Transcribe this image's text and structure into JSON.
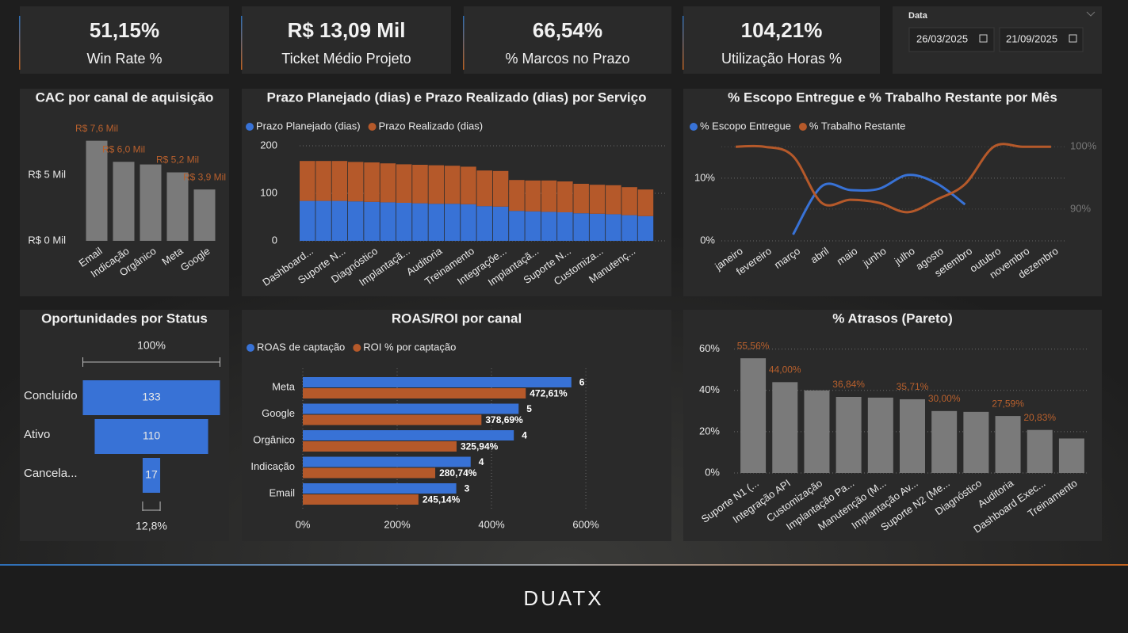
{
  "kpis": [
    {
      "value": "51,15%",
      "label": "Win Rate %"
    },
    {
      "value": "R$ 13,09 Mil",
      "label": "Ticket Médio Projeto"
    },
    {
      "value": "66,54%",
      "label": "% Marcos no Prazo"
    },
    {
      "value": "104,21%",
      "label": "Utilização Horas %"
    }
  ],
  "date_filter": {
    "label": "Data",
    "start": "26/03/2025",
    "end": "21/09/2025"
  },
  "chart_data": [
    {
      "type": "bar",
      "title": "CAC por canal de aquisição",
      "categories": [
        "Email",
        "Indicação",
        "Orgânico",
        "Meta",
        "Google"
      ],
      "values": [
        7.6,
        6.0,
        5.8,
        5.2,
        3.9
      ],
      "value_labels": [
        "R$ 7,6 Mil",
        "R$ 6,0 Mil",
        null,
        "R$ 5,2 Mil",
        "R$ 3,9 Mil"
      ],
      "color": "#7a7a7a",
      "label_color": "#b8602d",
      "ylim": [
        0,
        8
      ],
      "yticks": [
        {
          "value": 0,
          "label": "R$ 0 Mil"
        },
        {
          "value": 5,
          "label": "R$ 5 Mil"
        }
      ],
      "grid": false
    },
    {
      "type": "stacked_bar",
      "title": "Prazo Planejado (dias) e Prazo Realizado (dias) por Serviço",
      "categories": [
        "Dashboard...",
        null,
        "Suporte N...",
        null,
        "Diagnóstico",
        null,
        "Implantaçã...",
        null,
        "Auditoria",
        null,
        "Treinamento",
        null,
        "Integraçõe...",
        null,
        "Implantaçã...",
        null,
        "Suporte N...",
        null,
        "Customiza...",
        null,
        "Manutenç...",
        null
      ],
      "series": [
        {
          "name": "Prazo Planejado (dias)",
          "color": "#3872d6",
          "values": [
            84,
            84,
            84,
            83,
            82,
            81,
            80,
            79,
            78,
            78,
            77,
            73,
            72,
            63,
            62,
            61,
            60,
            58,
            57,
            56,
            54,
            52
          ]
        },
        {
          "name": "Prazo Realizado (dias)",
          "color": "#b5592a",
          "values": [
            84,
            84,
            84,
            83,
            83,
            82,
            81,
            81,
            81,
            80,
            79,
            75,
            75,
            65,
            65,
            66,
            65,
            62,
            61,
            61,
            59,
            56
          ]
        }
      ],
      "ylim": [
        0,
        210
      ],
      "yticks": [
        0,
        100,
        200
      ],
      "grid": true,
      "legend": "top-left"
    },
    {
      "type": "line",
      "title": "% Escopo Entregue e % Trabalho Restante por Mês",
      "categories": [
        "janeiro",
        "fevereiro",
        "março",
        "abril",
        "maio",
        "junho",
        "julho",
        "agosto",
        "setembro",
        "outubro",
        "novembro",
        "dezembro"
      ],
      "series": [
        {
          "name": "% Escopo Entregue",
          "color": "#3872d6",
          "values": [
            null,
            null,
            1.0,
            8.7,
            8.1,
            8.3,
            10.5,
            9.2,
            5.8,
            null,
            null,
            null
          ]
        },
        {
          "name": "% Trabalho Restante",
          "color": "#b5592a",
          "axis": "y2",
          "values": [
            100,
            100,
            98.5,
            91,
            91.5,
            91,
            89.5,
            91.5,
            94,
            100,
            100,
            100
          ]
        }
      ],
      "ylim": [
        0,
        16.3
      ],
      "yticks": [
        {
          "value": 0,
          "label": "0%"
        },
        {
          "value": 10,
          "label": "10%"
        }
      ],
      "y2lim": [
        84.9,
        101.3
      ],
      "y2ticks": [
        {
          "value": 90,
          "label": "90%"
        },
        {
          "value": 100,
          "label": "100%"
        }
      ],
      "grid": true,
      "legend": "top-left"
    },
    {
      "type": "funnel",
      "title": "Oportunidades por Status",
      "categories": [
        "Concluído",
        "Ativo",
        "Cancela..."
      ],
      "values": [
        133,
        110,
        17
      ],
      "color": "#3872d6",
      "top_label": "100%",
      "bottom_label": "12,8%"
    },
    {
      "type": "hbar",
      "title": "ROAS/ROI por canal",
      "categories": [
        "Meta",
        "Google",
        "Orgânico",
        "Indicação",
        "Email"
      ],
      "series": [
        {
          "name": "ROAS de captação",
          "color": "#3872d6",
          "axis": "x2",
          "values": [
            5.6,
            4.5,
            4.4,
            3.5,
            3.2
          ],
          "value_labels": [
            "6",
            "5",
            "4",
            "4",
            "3"
          ]
        },
        {
          "name": "ROI % por captação",
          "color": "#b5592a",
          "values": [
            472.61,
            378.69,
            325.94,
            280.74,
            245.14
          ],
          "value_labels": [
            "472,61%",
            "378,69%",
            "325,94%",
            "280,74%",
            "245,14%"
          ]
        }
      ],
      "xlim": [
        0,
        610
      ],
      "x2lim": [
        0,
        6
      ],
      "xticks": [
        {
          "value": 0,
          "label": "0%"
        },
        {
          "value": 200,
          "label": "200%"
        },
        {
          "value": 400,
          "label": "400%"
        },
        {
          "value": 600,
          "label": "600%"
        }
      ],
      "grid": true,
      "legend": "top-left"
    },
    {
      "type": "bar",
      "title": "% Atrasos (Pareto)",
      "categories": [
        "Suporte N1 (...",
        "Integração API",
        "Customização",
        "Implantação Pa...",
        "Manutenção (M...",
        "Implantação Av...",
        "Suporte N2 (Me...",
        "Diagnóstico",
        "Auditoria",
        "Dashboard Exec...",
        "Treinamento"
      ],
      "values": [
        55.56,
        44.0,
        40.0,
        36.84,
        36.5,
        35.71,
        30.0,
        29.6,
        27.59,
        20.83,
        16.7
      ],
      "value_labels": [
        "55,56%",
        "44,00%",
        null,
        "36,84%",
        null,
        "35,71%",
        "30,00%",
        null,
        "27,59%",
        "20,83%",
        null
      ],
      "color": "#7a7a7a",
      "label_color": "#b8602d",
      "ylim": [
        0,
        66
      ],
      "yticks": [
        {
          "value": 0,
          "label": "0%"
        },
        {
          "value": 20,
          "label": "20%"
        },
        {
          "value": 40,
          "label": "40%"
        },
        {
          "value": 60,
          "label": "60%"
        }
      ],
      "grid": true
    }
  ],
  "footer": {
    "logo": "DUATX"
  }
}
